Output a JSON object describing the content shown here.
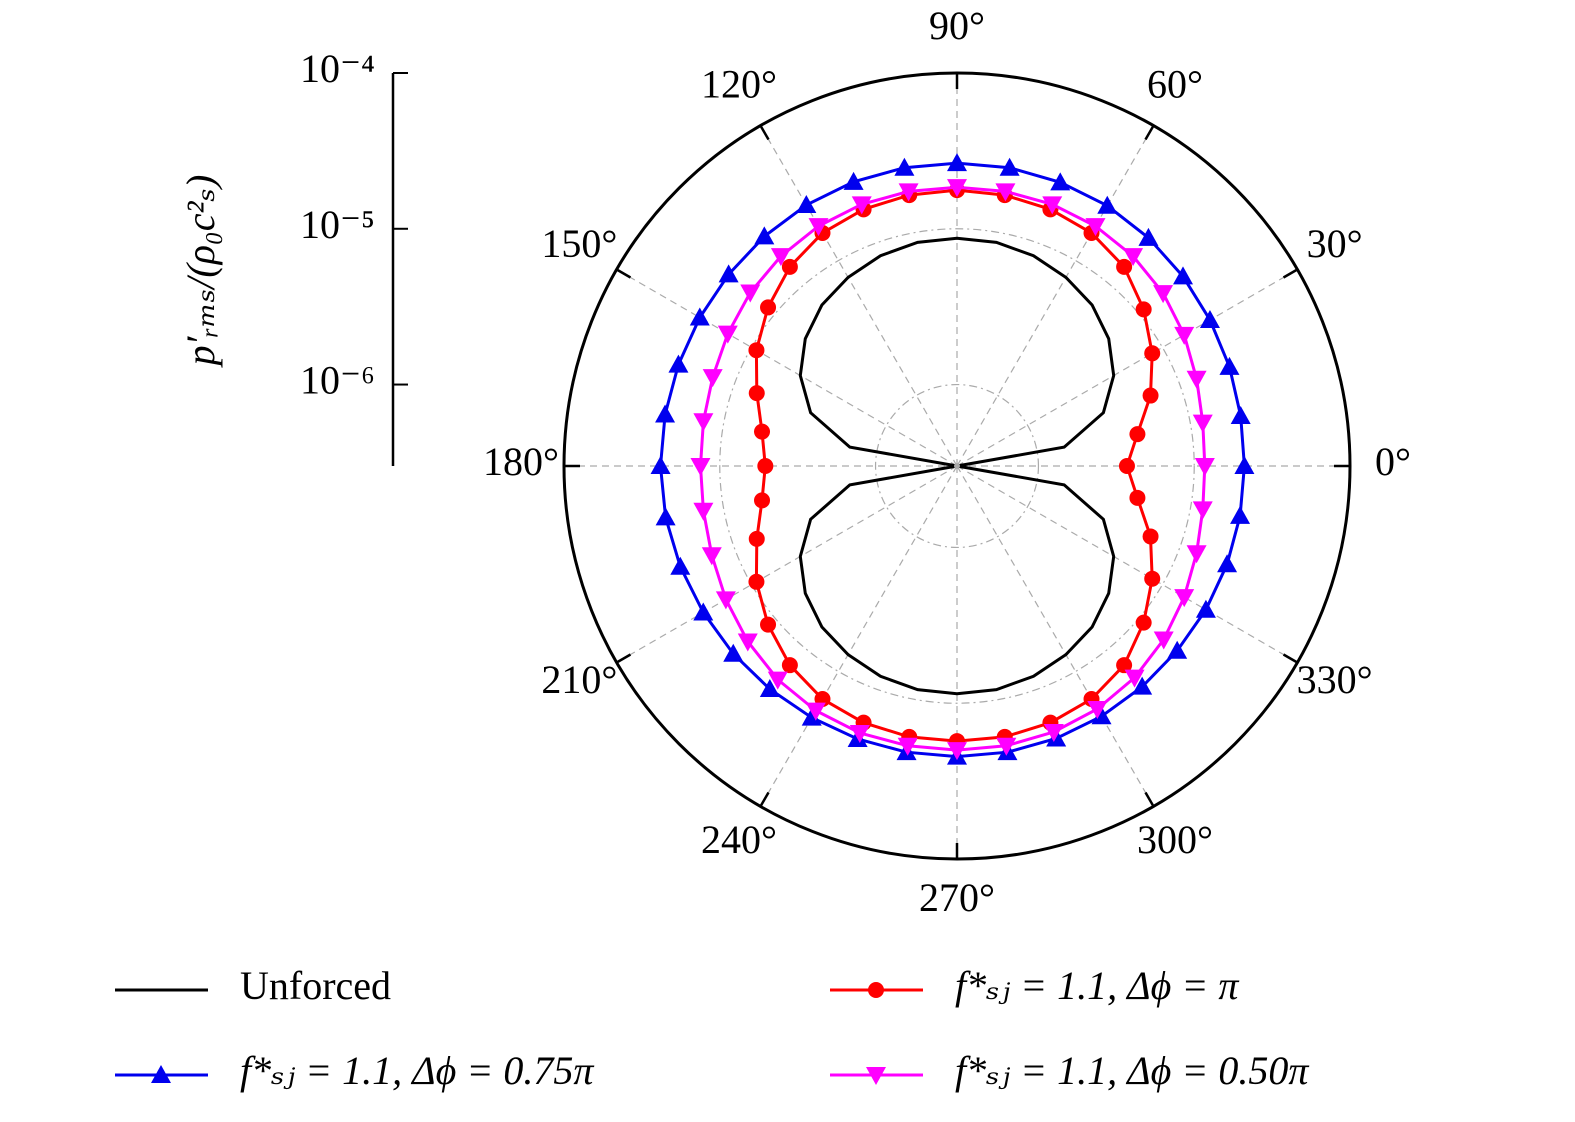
{
  "chart_data": {
    "type": "polar",
    "radial_label": "p′ᵣₘₛ/(ρ₀c²ₛ)",
    "log_r": true,
    "rlim": [
      3e-07,
      0.0001
    ],
    "rticks": [
      {
        "value": 0.0001,
        "label": "10⁻⁴"
      },
      {
        "value": 1e-05,
        "label": "10⁻⁵"
      },
      {
        "value": 1e-06,
        "label": "10⁻⁶"
      }
    ],
    "thetaticks": [
      {
        "value": 0,
        "label": "0°"
      },
      {
        "value": 30,
        "label": "30°"
      },
      {
        "value": 60,
        "label": "60°"
      },
      {
        "value": 90,
        "label": "90°"
      },
      {
        "value": 120,
        "label": "120°"
      },
      {
        "value": 150,
        "label": "150°"
      },
      {
        "value": 180,
        "label": "180°"
      },
      {
        "value": 210,
        "label": "210°"
      },
      {
        "value": 240,
        "label": "240°"
      },
      {
        "value": 270,
        "label": "270°"
      },
      {
        "value": 300,
        "label": "300°"
      },
      {
        "value": 330,
        "label": "330°"
      }
    ],
    "grid": true,
    "theta": [
      0,
      10,
      20,
      30,
      40,
      50,
      60,
      70,
      80,
      90,
      100,
      110,
      120,
      130,
      140,
      150,
      160,
      170,
      180,
      190,
      200,
      210,
      220,
      230,
      240,
      250,
      260,
      270,
      280,
      290,
      300,
      310,
      320,
      330,
      340,
      350
    ],
    "series": [
      {
        "name": "Unforced",
        "color": "#000000",
        "marker": null,
        "values": [
          3e-07,
          1.5e-06,
          3e-06,
          4.35e-06,
          5.6e-06,
          6.7e-06,
          7.5e-06,
          8.2e-06,
          8.6e-06,
          8.7e-06,
          8.6e-06,
          8.2e-06,
          7.5e-06,
          6.7e-06,
          5.6e-06,
          4.35e-06,
          3e-06,
          1.5e-06,
          3e-07,
          1.5e-06,
          3e-06,
          4.35e-06,
          5.6e-06,
          6.7e-06,
          7.5e-06,
          8.2e-06,
          8.6e-06,
          8.7e-06,
          8.6e-06,
          8.2e-06,
          7.5e-06,
          6.7e-06,
          5.6e-06,
          4.35e-06,
          3e-06,
          1.5e-06
        ]
      },
      {
        "name": "f*ₛⱼ = 1.1,  Δϕ = π",
        "color": "#ff0000",
        "marker": "circle",
        "values": [
          3.7e-06,
          4.5e-06,
          6.3e-06,
          8.4e-06,
          1.1e-05,
          1.4e-05,
          1.6e-05,
          1.7e-05,
          1.75e-05,
          1.77e-05,
          1.75e-05,
          1.7e-05,
          1.6e-05,
          1.4e-05,
          1.15e-05,
          9.2e-06,
          7e-06,
          5.6e-06,
          5.1e-06,
          5.6e-06,
          7e-06,
          9.2e-06,
          1.15e-05,
          1.4e-05,
          1.6e-05,
          1.7e-05,
          1.75e-05,
          1.75e-05,
          1.75e-05,
          1.7e-05,
          1.6e-05,
          1.4e-05,
          1.1e-05,
          8.4e-06,
          6.3e-06,
          4.5e-06
        ]
      },
      {
        "name": "f*ₛⱼ = 1.1,  Δϕ = 0.75π",
        "color": "#0000ee",
        "marker": "triangle-up",
        "values": [
          2.1e-05,
          2.12e-05,
          2.18e-05,
          2.25e-05,
          2.35e-05,
          2.45e-05,
          2.55e-05,
          2.6e-05,
          2.64e-05,
          2.64e-05,
          2.64e-05,
          2.62e-05,
          2.58e-05,
          2.52e-05,
          2.46e-05,
          2.42e-05,
          2.4e-05,
          2.4e-05,
          2.4e-05,
          2.38e-05,
          2.33e-05,
          2.28e-05,
          2.25e-05,
          2.22e-05,
          2.2e-05,
          2.2e-05,
          2.2e-05,
          2.2e-05,
          2.2e-05,
          2.18e-05,
          2.15e-05,
          2.12e-05,
          2.1e-05,
          2.1e-05,
          2.1e-05,
          2.1e-05
        ]
      },
      {
        "name": "f*ₛⱼ = 1.1,  Δϕ = 0.50π",
        "color": "#ff00ff",
        "marker": "triangle-down",
        "values": [
          1.17e-05,
          1.2e-05,
          1.3e-05,
          1.45e-05,
          1.6e-05,
          1.72e-05,
          1.8e-05,
          1.84e-05,
          1.85e-05,
          1.85e-05,
          1.85e-05,
          1.84e-05,
          1.8e-05,
          1.72e-05,
          1.62e-05,
          1.5e-05,
          1.4e-05,
          1.35e-05,
          1.33e-05,
          1.35e-05,
          1.42e-05,
          1.55e-05,
          1.7e-05,
          1.85e-05,
          1.95e-05,
          2e-05,
          2e-05,
          2e-05,
          2e-05,
          1.97e-05,
          1.9e-05,
          1.78e-05,
          1.62e-05,
          1.45e-05,
          1.3e-05,
          1.2e-05
        ]
      }
    ]
  }
}
